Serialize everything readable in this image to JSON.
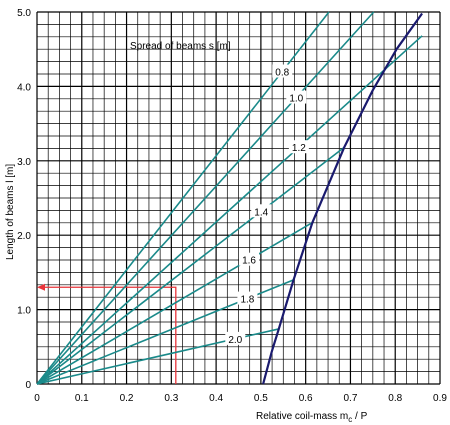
{
  "chart_data": {
    "type": "line",
    "xlabel": "Relative coil-mass  m",
    "xlabel_sub": "c",
    "xlabel_tail": " / P",
    "ylabel": "Length of beams l  [m]",
    "xlim": [
      0,
      0.9
    ],
    "ylim": [
      0,
      5.0
    ],
    "grid": true,
    "x_ticks": [
      "0",
      "0.1",
      "0.2",
      "0.3",
      "0.4",
      "0.5",
      "0.6",
      "0.7",
      "0.8",
      "0.9"
    ],
    "y_ticks": [
      "0",
      "1.0",
      "2.0",
      "3.0",
      "4.0",
      "5.0"
    ],
    "spread_title": "Spread of beams  s   [m]",
    "series": [
      {
        "name": "0.8",
        "points": [
          [
            0,
            0
          ],
          [
            0.652,
            5.0
          ]
        ]
      },
      {
        "name": "1.0",
        "points": [
          [
            0,
            0
          ],
          [
            0.752,
            5.0
          ]
        ]
      },
      {
        "name": "1.2",
        "points": [
          [
            0,
            0
          ],
          [
            0.86,
            4.68
          ]
        ]
      },
      {
        "name": "1.4",
        "points": [
          [
            0,
            0
          ],
          [
            0.686,
            3.18
          ]
        ]
      },
      {
        "name": "1.6",
        "points": [
          [
            0,
            0
          ],
          [
            0.615,
            2.17
          ]
        ]
      },
      {
        "name": "1.8",
        "points": [
          [
            0,
            0
          ],
          [
            0.573,
            1.4
          ]
        ]
      },
      {
        "name": "2.0",
        "points": [
          [
            0,
            0
          ],
          [
            0.54,
            0.74
          ]
        ]
      }
    ],
    "limit_curve": [
      [
        0.505,
        0
      ],
      [
        0.525,
        0.45
      ],
      [
        0.54,
        0.74
      ],
      [
        0.573,
        1.4
      ],
      [
        0.615,
        2.17
      ],
      [
        0.686,
        3.18
      ],
      [
        0.75,
        3.95
      ],
      [
        0.803,
        4.5
      ],
      [
        0.86,
        4.98
      ]
    ],
    "example": {
      "x": 0.31,
      "y": 1.3
    },
    "colors": {
      "series": "#1a8a8a",
      "limit": "#1a1a6e",
      "example": "#e8343a",
      "grid": "#000000"
    }
  }
}
